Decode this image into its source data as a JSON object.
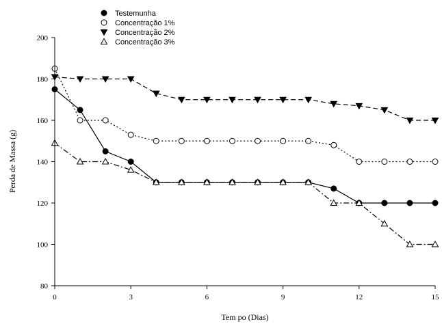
{
  "chart_data": {
    "type": "line",
    "xlabel": "Tem po (Dias)",
    "ylabel": "Perda de Massa (g)",
    "xlim": [
      0,
      15
    ],
    "ylim": [
      80,
      200
    ],
    "xticks": [
      0,
      3,
      6,
      9,
      12,
      15
    ],
    "yticks": [
      80,
      100,
      120,
      140,
      160,
      180,
      200
    ],
    "grid": false,
    "legend_position": "top-left",
    "x": [
      0,
      1,
      2,
      3,
      4,
      5,
      6,
      7,
      8,
      9,
      10,
      11,
      12,
      13,
      14,
      15
    ],
    "series": [
      {
        "name": "Testemunha",
        "marker": "filled-circle",
        "line_style": "solid",
        "values": [
          175,
          165,
          145,
          140,
          130,
          130,
          130,
          130,
          130,
          130,
          130,
          127,
          120,
          120,
          120,
          120
        ]
      },
      {
        "name": "Concentração 1%",
        "marker": "open-circle",
        "line_style": "dotted",
        "values": [
          185,
          160,
          160,
          153,
          150,
          150,
          150,
          150,
          150,
          150,
          150,
          148,
          140,
          140,
          140,
          140
        ]
      },
      {
        "name": "Concentração 2%",
        "marker": "filled-triangle-down",
        "line_style": "dashed",
        "values": [
          181,
          180,
          180,
          180,
          173,
          170,
          170,
          170,
          170,
          170,
          170,
          168,
          167,
          165,
          160,
          160
        ]
      },
      {
        "name": "Concentração 3%",
        "marker": "open-triangle-up",
        "line_style": "dash-dot",
        "values": [
          149,
          140,
          140,
          136,
          130,
          130,
          130,
          130,
          130,
          130,
          130,
          120,
          120,
          110,
          100,
          100
        ]
      }
    ]
  }
}
